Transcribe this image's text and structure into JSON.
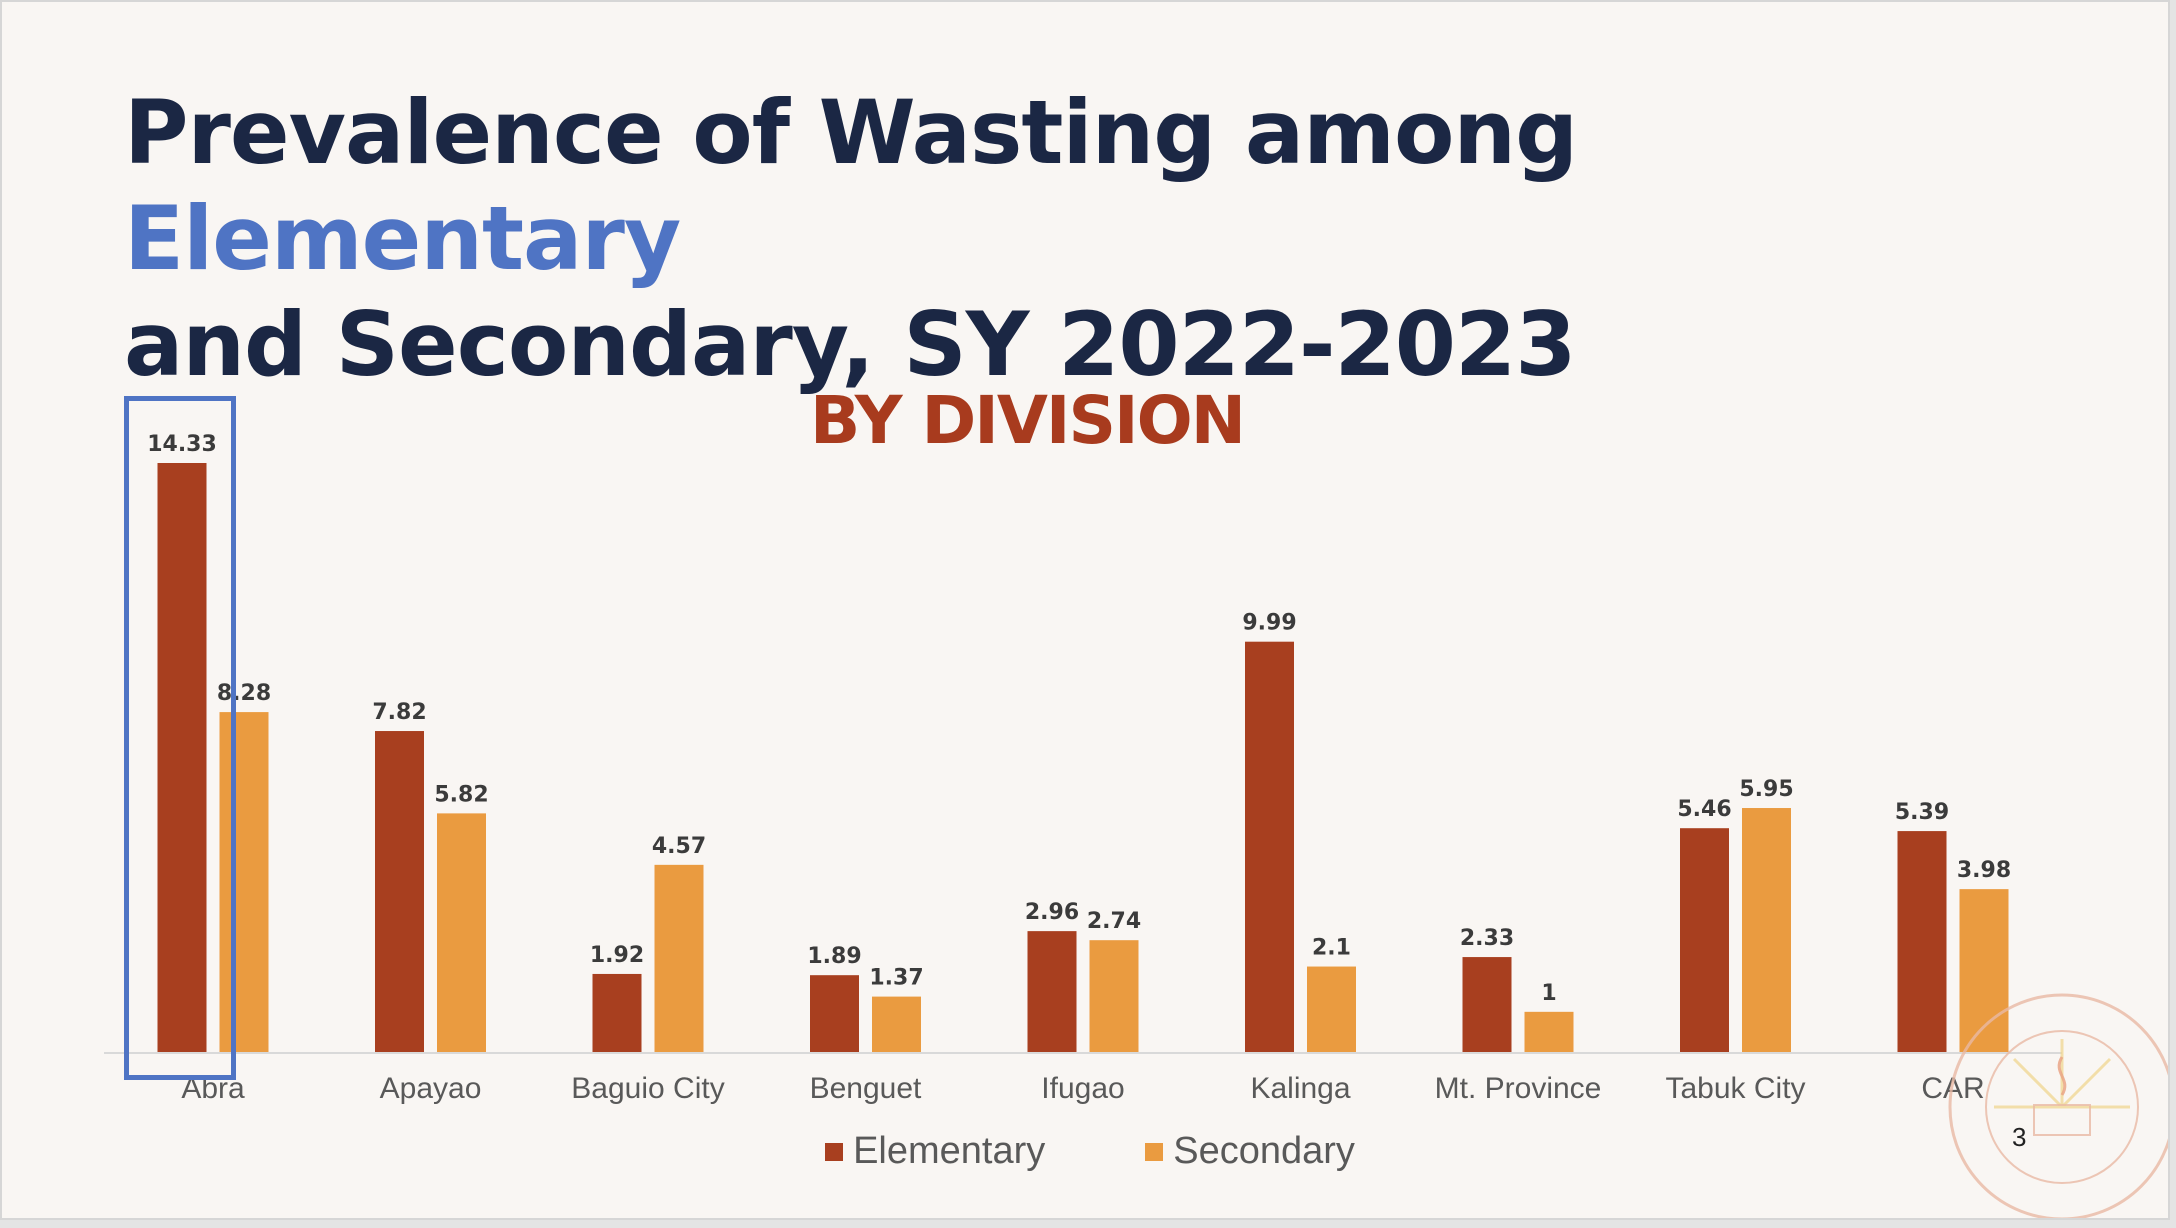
{
  "slide": {
    "title_part1": "Prevalence of Wasting among ",
    "title_highlight": "Elementary",
    "title_part2": "and Secondary, SY 2022-2023",
    "subtitle": "BY DIVISION",
    "page_number": "3"
  },
  "colors": {
    "elementary": "#a83f1f",
    "secondary": "#ea9b40",
    "title": "#1b2744",
    "title_highlight": "#4f74c4",
    "subtitle": "#a83b1e",
    "highlight_box": "#4f74c4"
  },
  "chart_data": {
    "type": "bar",
    "title": "",
    "xlabel": "",
    "ylabel": "",
    "categories": [
      "Abra",
      "Apayao",
      "Baguio City",
      "Benguet",
      "Ifugao",
      "Kalinga",
      "Mt. Province",
      "Tabuk City",
      "CAR"
    ],
    "series": [
      {
        "name": "Elementary",
        "values": [
          14.33,
          7.82,
          1.92,
          1.89,
          2.96,
          9.99,
          2.33,
          5.46,
          5.39
        ]
      },
      {
        "name": "Secondary",
        "values": [
          8.28,
          5.82,
          4.57,
          1.37,
          2.74,
          2.1,
          1,
          5.95,
          3.98
        ]
      }
    ],
    "ylim": [
      0,
      14.33
    ],
    "grid": false,
    "legend": "bottom",
    "data_labels": true,
    "highlighted_category": "Abra"
  }
}
